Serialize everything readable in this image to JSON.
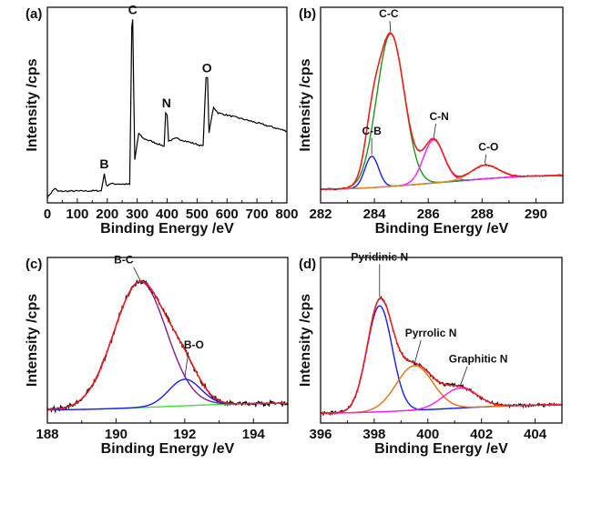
{
  "chart_data": [
    {
      "panel": "(a)",
      "type": "line",
      "xlabel": "Binding Energy /eV",
      "ylabel": "Intensity /cps",
      "xlim": [
        0,
        800
      ],
      "xticks": [
        0,
        100,
        200,
        300,
        400,
        500,
        600,
        700,
        800
      ],
      "ylim": [
        0,
        100
      ],
      "grid": false,
      "series": [
        {
          "color": "#000000",
          "x": [
            0,
            25,
            35,
            180,
            190,
            197,
            210,
            275,
            282,
            285,
            292,
            305,
            320,
            390,
            395,
            400,
            405,
            430,
            520,
            530,
            535,
            540,
            555,
            570,
            650,
            800
          ],
          "y": [
            2.8,
            7.5,
            5.9,
            6.2,
            15,
            8.7,
            9.8,
            9.5,
            90,
            93.8,
            22,
            35.5,
            33,
            29,
            46,
            45,
            31.6,
            33,
            29,
            64,
            64,
            36,
            49,
            46,
            43,
            36.7
          ]
        }
      ],
      "annotations": [
        {
          "text": "B",
          "x": 190,
          "y": 15
        },
        {
          "text": "C",
          "x": 285,
          "y": 93.8
        },
        {
          "text": "N",
          "x": 398,
          "y": 46
        },
        {
          "text": "O",
          "x": 533,
          "y": 64
        }
      ]
    },
    {
      "panel": "(b)",
      "type": "line",
      "xlabel": "Binding Energy /eV",
      "ylabel": "Intensity /cps",
      "xlim": [
        282,
        291
      ],
      "xticks": [
        282,
        284,
        286,
        288,
        290
      ],
      "ylim": [
        0,
        100
      ],
      "grid": false,
      "baseline": {
        "start": 7,
        "end": 14,
        "color": "#e08a1e"
      },
      "envelope_color": "#ff1a1a",
      "raw_color": "#000000",
      "peaks": [
        {
          "name": "C-B",
          "center": 283.9,
          "height": 16,
          "fwhm": 0.6,
          "color": "#1a1aff"
        },
        {
          "name": "C-C",
          "center": 284.6,
          "height": 78,
          "fwhm": 1.2,
          "color": "#1a961a"
        },
        {
          "name": "C-N",
          "center": 286.2,
          "height": 22,
          "fwhm": 0.9,
          "color": "#ff1aff"
        },
        {
          "name": "C-O",
          "center": 288.1,
          "height": 7,
          "fwhm": 1.2,
          "color": "#e08a1e"
        }
      ]
    },
    {
      "panel": "(c)",
      "type": "line",
      "xlabel": "Binding Energy /eV",
      "ylabel": "Intensity /cps",
      "xlim": [
        188,
        195
      ],
      "xticks": [
        188,
        190,
        192,
        194
      ],
      "ylim": [
        0,
        100
      ],
      "grid": false,
      "baseline": {
        "start": 8,
        "end": 12,
        "color": "#33dd33"
      },
      "envelope_color": "#ff1a1a",
      "raw_color": "#000000",
      "peaks": [
        {
          "name": "B-C",
          "center": 190.7,
          "height": 76,
          "fwhm": 1.8,
          "color": "#7a1f8a"
        },
        {
          "name": "B-O",
          "center": 192.0,
          "height": 16,
          "fwhm": 1.1,
          "color": "#1a1aff"
        }
      ]
    },
    {
      "panel": "(d)",
      "type": "line",
      "xlabel": "Binding Energy /eV",
      "ylabel": "Intensity /cps",
      "xlim": [
        396,
        405
      ],
      "xticks": [
        396,
        398,
        400,
        402,
        404
      ],
      "ylim": [
        0,
        100
      ],
      "grid": false,
      "baseline": {
        "start": 6,
        "end": 11,
        "color": "#33dd33"
      },
      "envelope_color": "#ff1a1a",
      "raw_color": "#000000",
      "peaks": [
        {
          "name": "Pyridinic N",
          "center": 398.2,
          "height": 64,
          "fwhm": 1.1,
          "color": "#1a1aff"
        },
        {
          "name": "Pyrrolic N",
          "center": 399.5,
          "height": 27,
          "fwhm": 1.6,
          "color": "#e07010"
        },
        {
          "name": "Graphitic N",
          "center": 401.2,
          "height": 12,
          "fwhm": 1.5,
          "color": "#ff1aff"
        }
      ]
    }
  ]
}
